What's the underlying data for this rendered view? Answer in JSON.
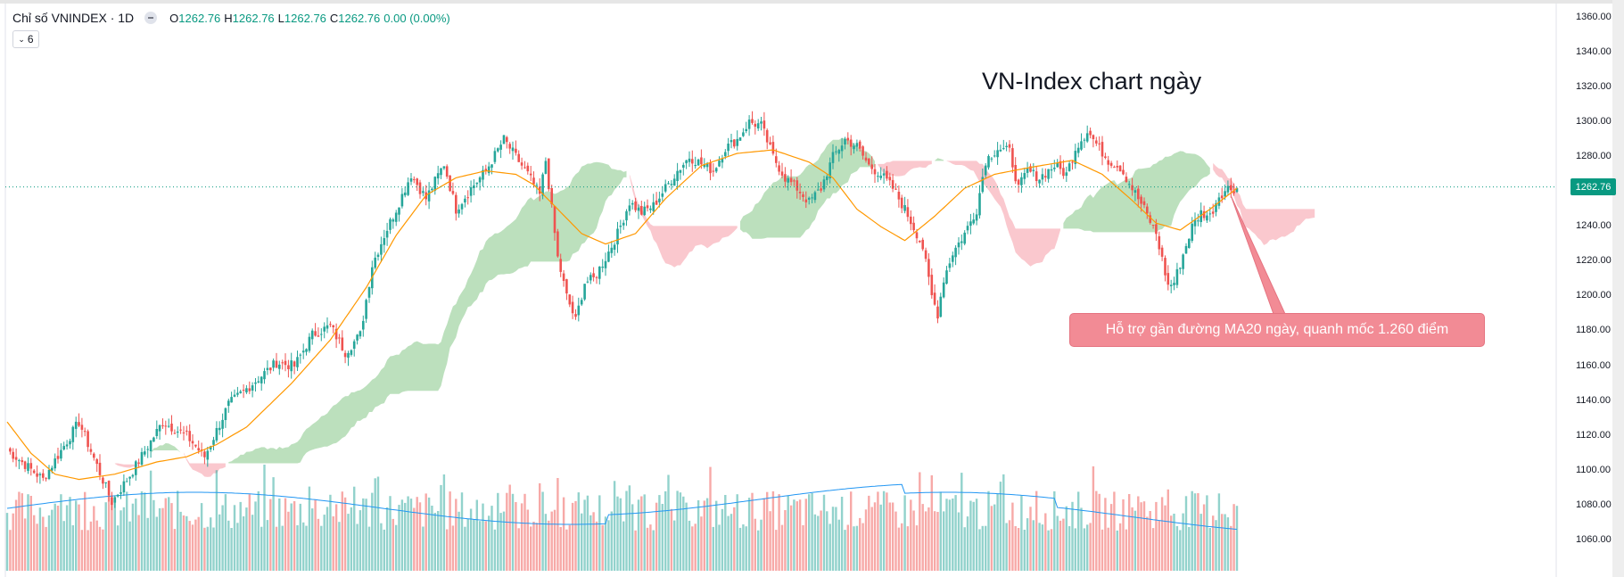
{
  "header": {
    "title": "Chỉ số VNINDEX · 1D",
    "o_label": "O",
    "o_value": "1262.76",
    "h_label": "H",
    "h_value": "1262.76",
    "l_label": "L",
    "l_value": "1262.76",
    "c_label": "C",
    "c_value": "1262.76",
    "change": "0.00 (0.00%)",
    "indicator_count": "6"
  },
  "chart_data": {
    "type": "candlestick",
    "title": "VN-Index chart ngày",
    "annotation": "Hỗ trợ gần đường MA20 ngày, quanh mốc 1.260 điểm",
    "last_price": "1262.76",
    "ylim": [
      1050,
      1365
    ],
    "y_ticks": [
      "1360.00",
      "1340.00",
      "1320.00",
      "1300.00",
      "1280.00",
      "1260.00",
      "1240.00",
      "1220.00",
      "1200.00",
      "1180.00",
      "1160.00",
      "1140.00",
      "1120.00",
      "1100.00",
      "1080.00",
      "1060.00"
    ],
    "close_path": [
      [
        0,
        1112
      ],
      [
        12,
        1095
      ],
      [
        24,
        1128
      ],
      [
        35,
        1082
      ],
      [
        42,
        1100
      ],
      [
        52,
        1128
      ],
      [
        60,
        1120
      ],
      [
        66,
        1108
      ],
      [
        74,
        1138
      ],
      [
        82,
        1150
      ],
      [
        90,
        1162
      ],
      [
        96,
        1160
      ],
      [
        102,
        1178
      ],
      [
        108,
        1183
      ],
      [
        113,
        1168
      ],
      [
        118,
        1178
      ],
      [
        122,
        1218
      ],
      [
        126,
        1235
      ],
      [
        130,
        1250
      ],
      [
        135,
        1270
      ],
      [
        140,
        1256
      ],
      [
        146,
        1276
      ],
      [
        150,
        1250
      ],
      [
        155,
        1262
      ],
      [
        160,
        1272
      ],
      [
        166,
        1290
      ],
      [
        170,
        1280
      ],
      [
        174,
        1270
      ],
      [
        178,
        1258
      ],
      [
        180,
        1278
      ],
      [
        184,
        1222
      ],
      [
        187,
        1200
      ],
      [
        190,
        1186
      ],
      [
        193,
        1208
      ],
      [
        196,
        1210
      ],
      [
        200,
        1222
      ],
      [
        204,
        1236
      ],
      [
        208,
        1254
      ],
      [
        212,
        1248
      ],
      [
        216,
        1252
      ],
      [
        220,
        1262
      ],
      [
        224,
        1272
      ],
      [
        228,
        1280
      ],
      [
        232,
        1276
      ],
      [
        236,
        1272
      ],
      [
        240,
        1285
      ],
      [
        244,
        1290
      ],
      [
        248,
        1300
      ],
      [
        252,
        1298
      ],
      [
        256,
        1280
      ],
      [
        260,
        1268
      ],
      [
        264,
        1262
      ],
      [
        268,
        1254
      ],
      [
        272,
        1262
      ],
      [
        276,
        1280
      ],
      [
        280,
        1290
      ],
      [
        284,
        1286
      ],
      [
        288,
        1275
      ],
      [
        292,
        1270
      ],
      [
        296,
        1262
      ],
      [
        300,
        1250
      ],
      [
        304,
        1236
      ],
      [
        306,
        1228
      ],
      [
        309,
        1200
      ],
      [
        311,
        1190
      ],
      [
        313,
        1210
      ],
      [
        316,
        1225
      ],
      [
        320,
        1236
      ],
      [
        324,
        1250
      ],
      [
        327,
        1278
      ],
      [
        331,
        1285
      ],
      [
        335,
        1283
      ],
      [
        338,
        1262
      ],
      [
        341,
        1272
      ],
      [
        345,
        1268
      ],
      [
        350,
        1275
      ],
      [
        354,
        1270
      ],
      [
        357,
        1285
      ],
      [
        361,
        1295
      ],
      [
        365,
        1285
      ],
      [
        368,
        1278
      ],
      [
        372,
        1274
      ],
      [
        376,
        1262
      ],
      [
        380,
        1250
      ],
      [
        384,
        1236
      ],
      [
        388,
        1206
      ],
      [
        390,
        1208
      ],
      [
        393,
        1224
      ],
      [
        396,
        1240
      ],
      [
        399,
        1248
      ],
      [
        402,
        1246
      ],
      [
        405,
        1258
      ],
      [
        408,
        1262
      ],
      [
        411,
        1262
      ]
    ],
    "ma20_path": [
      [
        0,
        1128
      ],
      [
        8,
        1110
      ],
      [
        16,
        1098
      ],
      [
        24,
        1095
      ],
      [
        36,
        1098
      ],
      [
        50,
        1105
      ],
      [
        60,
        1108
      ],
      [
        70,
        1115
      ],
      [
        80,
        1125
      ],
      [
        95,
        1150
      ],
      [
        108,
        1175
      ],
      [
        120,
        1205
      ],
      [
        130,
        1235
      ],
      [
        140,
        1258
      ],
      [
        150,
        1268
      ],
      [
        160,
        1272
      ],
      [
        170,
        1270
      ],
      [
        176,
        1264
      ],
      [
        184,
        1250
      ],
      [
        192,
        1236
      ],
      [
        200,
        1230
      ],
      [
        210,
        1236
      ],
      [
        220,
        1256
      ],
      [
        232,
        1275
      ],
      [
        244,
        1282
      ],
      [
        256,
        1284
      ],
      [
        268,
        1277
      ],
      [
        276,
        1268
      ],
      [
        284,
        1250
      ],
      [
        292,
        1240
      ],
      [
        300,
        1232
      ],
      [
        310,
        1246
      ],
      [
        320,
        1262
      ],
      [
        330,
        1270
      ],
      [
        342,
        1274
      ],
      [
        356,
        1278
      ],
      [
        366,
        1270
      ],
      [
        376,
        1255
      ],
      [
        384,
        1242
      ],
      [
        392,
        1238
      ],
      [
        402,
        1250
      ],
      [
        411,
        1262
      ]
    ]
  }
}
